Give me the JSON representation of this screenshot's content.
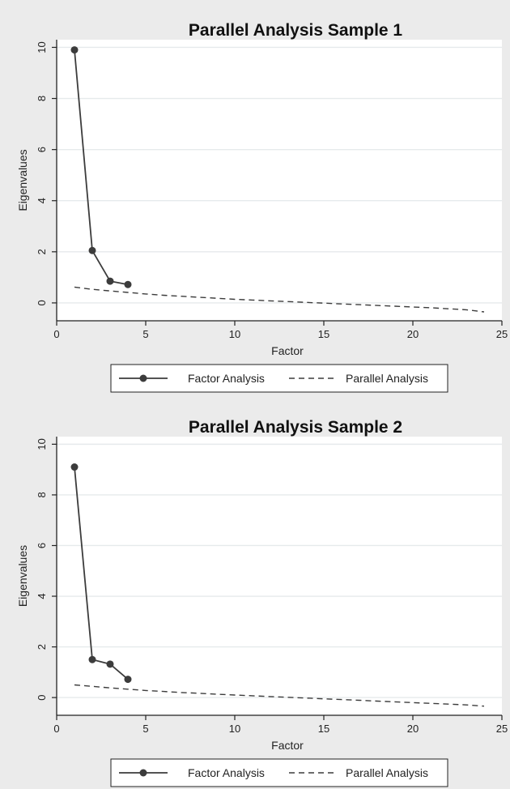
{
  "chart_data": [
    {
      "type": "line",
      "title": "Parallel Analysis Sample 1",
      "xlabel": "Factor",
      "ylabel": "Eigenvalues",
      "xlim": [
        0,
        25
      ],
      "ylim": [
        -0.7,
        10.3
      ],
      "xticks": [
        0,
        5,
        10,
        15,
        20,
        25
      ],
      "yticks": [
        0,
        2,
        4,
        6,
        8,
        10
      ],
      "grid": true,
      "legend_position": "bottom",
      "series": [
        {
          "name": "Factor Analysis",
          "style": "solid-with-markers",
          "x": [
            1,
            2,
            3,
            4
          ],
          "y": [
            9.9,
            2.05,
            0.85,
            0.72
          ]
        },
        {
          "name": "Parallel Analysis",
          "style": "dashed",
          "x": [
            1,
            2,
            3,
            4,
            5,
            6,
            7,
            8,
            9,
            10,
            11,
            12,
            13,
            14,
            15,
            16,
            17,
            18,
            19,
            20,
            21,
            22,
            23,
            24
          ],
          "y": [
            0.62,
            0.53,
            0.47,
            0.41,
            0.35,
            0.3,
            0.26,
            0.22,
            0.18,
            0.14,
            0.11,
            0.08,
            0.05,
            0.02,
            -0.01,
            -0.04,
            -0.07,
            -0.1,
            -0.13,
            -0.16,
            -0.19,
            -0.23,
            -0.27,
            -0.35
          ]
        }
      ]
    },
    {
      "type": "line",
      "title": "Parallel Analysis Sample 2",
      "xlabel": "Factor",
      "ylabel": "Eigenvalues",
      "xlim": [
        0,
        25
      ],
      "ylim": [
        -0.7,
        10.3
      ],
      "xticks": [
        0,
        5,
        10,
        15,
        20,
        25
      ],
      "yticks": [
        0,
        2,
        4,
        6,
        8,
        10
      ],
      "grid": true,
      "legend_position": "bottom",
      "series": [
        {
          "name": "Factor Analysis",
          "style": "solid-with-markers",
          "x": [
            1,
            2,
            3,
            4
          ],
          "y": [
            9.1,
            1.5,
            1.32,
            0.72
          ]
        },
        {
          "name": "Parallel Analysis",
          "style": "dashed",
          "x": [
            1,
            2,
            3,
            4,
            5,
            6,
            7,
            8,
            9,
            10,
            11,
            12,
            13,
            14,
            15,
            16,
            17,
            18,
            19,
            20,
            21,
            22,
            23,
            24
          ],
          "y": [
            0.5,
            0.44,
            0.38,
            0.33,
            0.28,
            0.24,
            0.2,
            0.17,
            0.13,
            0.1,
            0.07,
            0.04,
            0.01,
            -0.02,
            -0.05,
            -0.08,
            -0.11,
            -0.14,
            -0.17,
            -0.2,
            -0.23,
            -0.26,
            -0.29,
            -0.34
          ]
        }
      ]
    }
  ],
  "colors": {
    "background": "#ebebeb",
    "plot_area": "#ffffff",
    "grid": "#e6eaec",
    "series": "#3c3c3c",
    "axis": "#222222"
  }
}
